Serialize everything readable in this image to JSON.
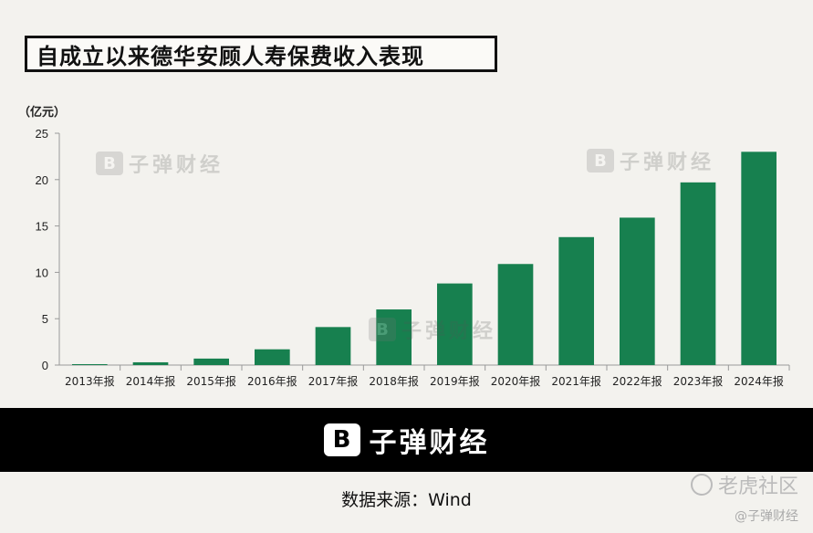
{
  "title": "自成立以来德华安顾人寿保费收入表现",
  "unit": "（亿元）",
  "watermark_text": "子弹财经",
  "brand": {
    "logo_glyph": "B",
    "name": "子弹财经"
  },
  "source": "数据来源：Wind",
  "corner_watermark": {
    "main": "老虎社区",
    "sub": "@子弹财经"
  },
  "colors": {
    "bar": "#17804f",
    "background": "#f3f2ee",
    "brand_bar": "#000000"
  },
  "chart_data": {
    "type": "bar",
    "title": "自成立以来德华安顾人寿保费收入表现",
    "ylabel": "（亿元）",
    "xlabel": "",
    "categories": [
      "2013年报",
      "2014年报",
      "2015年报",
      "2016年报",
      "2017年报",
      "2018年报",
      "2019年报",
      "2020年报",
      "2021年报",
      "2022年报",
      "2023年报",
      "2024年报"
    ],
    "values": [
      0.1,
      0.3,
      0.7,
      1.7,
      4.1,
      6.0,
      8.8,
      10.9,
      13.8,
      15.9,
      19.7,
      23.0
    ],
    "ylim": [
      0,
      25
    ],
    "yticks": [
      0,
      5,
      10,
      15,
      20,
      25
    ],
    "grid": false,
    "legend": "none"
  }
}
